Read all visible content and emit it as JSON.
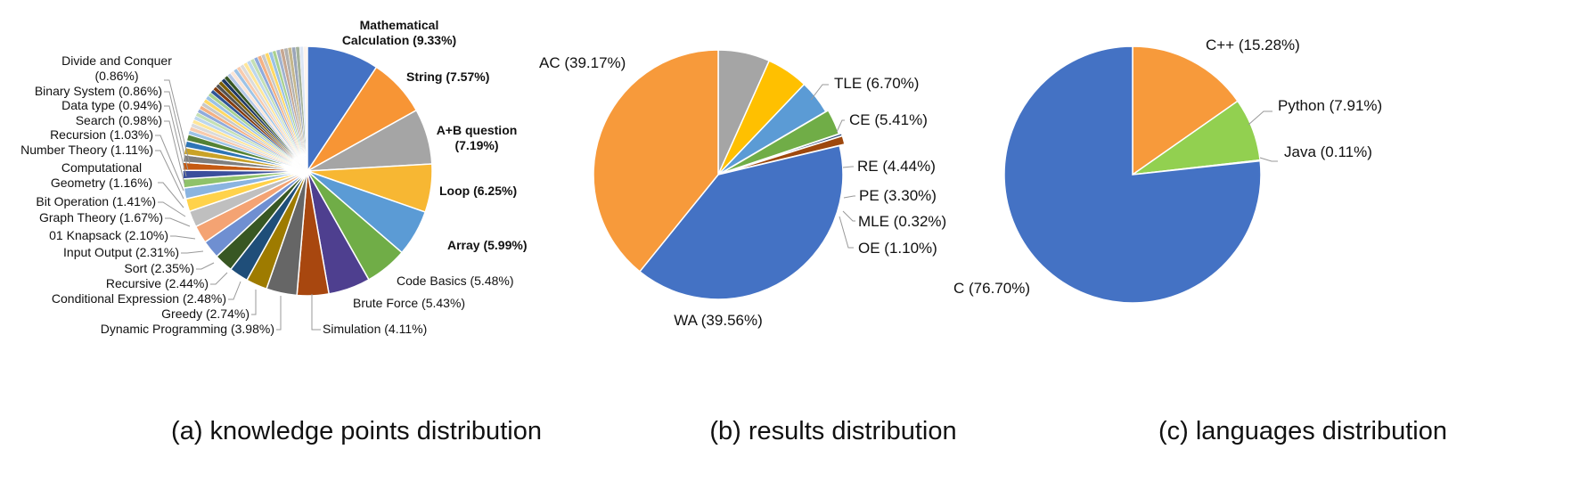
{
  "captions": [
    "(a) knowledge points distribution",
    "(b) results distribution",
    "(c) languages distribution"
  ],
  "chart_data": [
    {
      "type": "pie",
      "title": "",
      "caption": "(a) knowledge points distribution",
      "slices": [
        {
          "label": "Mathematical Calculation (9.33%)",
          "value": 9.33,
          "color": "#4472c4"
        },
        {
          "label": "String (7.57%)",
          "value": 7.57,
          "color": "#f79535"
        },
        {
          "label": "A+B question (7.19%)",
          "value": 7.19,
          "color": "#a5a5a5"
        },
        {
          "label": "Loop (6.25%)",
          "value": 6.25,
          "color": "#f7b733"
        },
        {
          "label": "Array (5.99%)",
          "value": 5.99,
          "color": "#5b9bd5"
        },
        {
          "label": "Code Basics (5.48%)",
          "value": 5.48,
          "color": "#70ad47"
        },
        {
          "label": "Brute Force (5.43%)",
          "value": 5.43,
          "color": "#4e3f8f"
        },
        {
          "label": "Simulation (4.11%)",
          "value": 4.11,
          "color": "#a8470f"
        },
        {
          "label": "Dynamic Programming (3.98%)",
          "value": 3.98,
          "color": "#666666"
        },
        {
          "label": "Greedy (2.74%)",
          "value": 2.74,
          "color": "#9e7b00"
        },
        {
          "label": "Conditional Expression (2.48%)",
          "value": 2.48,
          "color": "#1f4e79"
        },
        {
          "label": "Recursive (2.44%)",
          "value": 2.44,
          "color": "#385723"
        },
        {
          "label": "Sort (2.35%)",
          "value": 2.35,
          "color": "#6f8fd1"
        },
        {
          "label": "Input Output (2.31%)",
          "value": 2.31,
          "color": "#f4a373"
        },
        {
          "label": "01 Knapsack  (2.10%)",
          "value": 2.1,
          "color": "#bfbfbf"
        },
        {
          "label": "Graph Theory (1.67%)",
          "value": 1.67,
          "color": "#ffd24a"
        },
        {
          "label": "Bit Operation (1.41%)",
          "value": 1.41,
          "color": "#8ab4e0"
        },
        {
          "label": "Computational Geometry (1.16%)",
          "value": 1.16,
          "color": "#8fc26a"
        },
        {
          "label": "Number Theory (1.11%)",
          "value": 1.11,
          "color": "#3b4f9c"
        },
        {
          "label": "Recursion (1.03%)",
          "value": 1.03,
          "color": "#c55a11"
        },
        {
          "label": "Search (0.98%)",
          "value": 0.98,
          "color": "#7f7f7f"
        },
        {
          "label": "Data type (0.94%)",
          "value": 0.94,
          "color": "#c9a227"
        },
        {
          "label": "Binary System (0.86%)",
          "value": 0.86,
          "color": "#2e75b6"
        },
        {
          "label": "Divide and Conquer (0.86%)",
          "value": 0.86,
          "color": "#548235"
        }
      ],
      "other_small_slices_value": 15.21
    },
    {
      "type": "pie",
      "title": "",
      "caption": "(b) results distribution",
      "slices": [
        {
          "label": "TLE (6.70%)",
          "value": 6.7,
          "color": "#a5a5a5"
        },
        {
          "label": "CE (5.41%)",
          "value": 5.41,
          "color": "#ffc000"
        },
        {
          "label": "RE (4.44%)",
          "value": 4.44,
          "color": "#5b9bd5"
        },
        {
          "label": "PE (3.30%)",
          "value": 3.3,
          "color": "#70ad47"
        },
        {
          "label": "MLE (0.32%)",
          "value": 0.32,
          "color": "#264478"
        },
        {
          "label": "OE (1.10%)",
          "value": 1.1,
          "color": "#9e480e"
        },
        {
          "label": "WA (39.56%)",
          "value": 39.56,
          "color": "#4472c4"
        },
        {
          "label": "AC (39.17%)",
          "value": 39.17,
          "color": "#f79a3b"
        }
      ]
    },
    {
      "type": "pie",
      "title": "",
      "caption": "(c) languages distribution",
      "slices": [
        {
          "label": "C++ (15.28%)",
          "value": 15.28,
          "color": "#f79a3b"
        },
        {
          "label": "Python (7.91%)",
          "value": 7.91,
          "color": "#92d050"
        },
        {
          "label": "Java (0.11%)",
          "value": 0.11,
          "color": "#a5a5a5"
        },
        {
          "label": "C (76.70%)",
          "value": 76.7,
          "color": "#4472c4"
        }
      ]
    }
  ]
}
